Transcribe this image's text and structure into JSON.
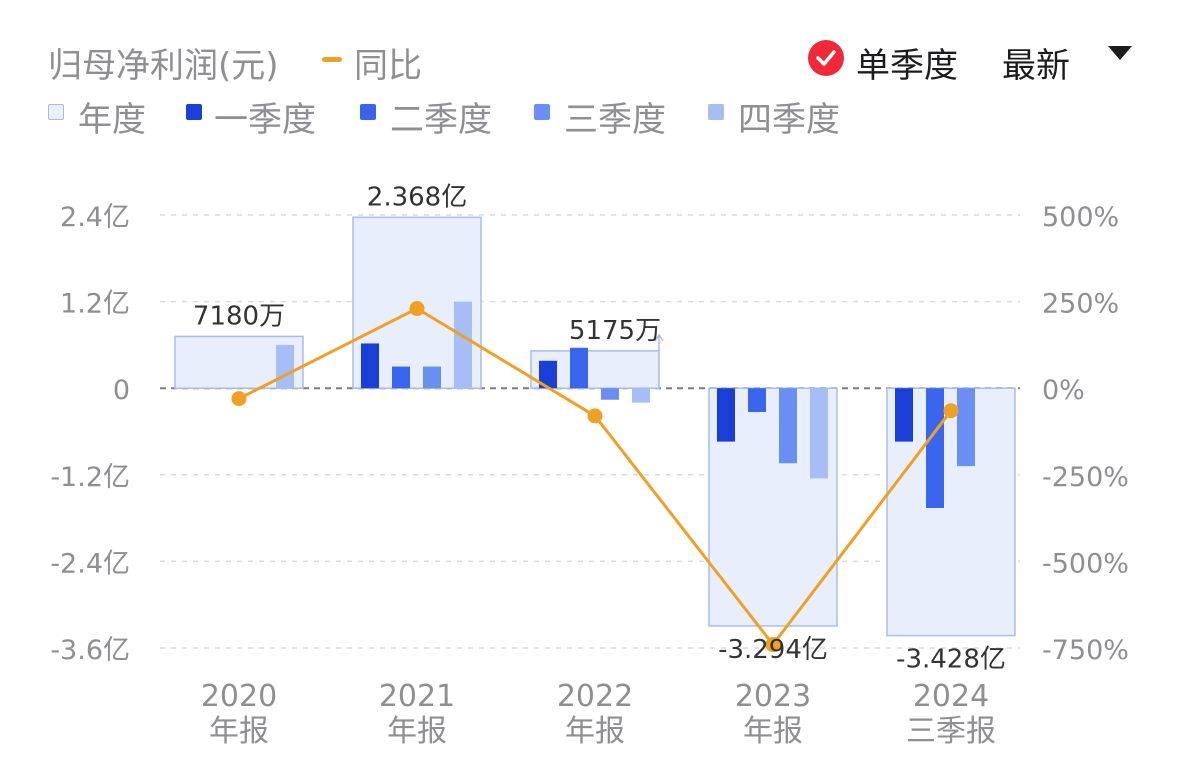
{
  "header": {
    "title": "归母净利润(元)",
    "yoy_label": "同比",
    "mode_label": "单季度",
    "sort_label": "最新"
  },
  "legend": [
    {
      "label": "年度",
      "color": "#e8eefc",
      "border": "#a9bde6"
    },
    {
      "label": "一季度",
      "color": "#1a3fd6"
    },
    {
      "label": "二季度",
      "color": "#3a66ee"
    },
    {
      "label": "三季度",
      "color": "#6a8ff2"
    },
    {
      "label": "四季度",
      "color": "#a6bdf5"
    }
  ],
  "colors": {
    "annual_fill": "#e8eefc",
    "annual_border": "#a9bde6",
    "q1": "#1a3fd6",
    "q2": "#3a66ee",
    "q3": "#6a8ff2",
    "q4": "#a6bdf5",
    "yoy_line": "#f0a024",
    "check_badge": "#f0283a",
    "grid": "#d9d9de",
    "axis_text": "#8e8e93",
    "label_text": "#333333"
  },
  "chart_data": {
    "type": "bar",
    "categories": [
      {
        "line1": "2020",
        "line2": "年报"
      },
      {
        "line1": "2021",
        "line2": "年报"
      },
      {
        "line1": "2022",
        "line2": "年报"
      },
      {
        "line1": "2023",
        "line2": "年报"
      },
      {
        "line1": "2024",
        "line2": "三季报"
      }
    ],
    "annual": [
      0.718,
      2.368,
      0.5175,
      -3.294,
      -3.428
    ],
    "annual_labels": [
      "7180万",
      "2.368亿",
      "5175万",
      "-3.294亿",
      "-3.428亿"
    ],
    "quarters": [
      [
        null,
        null,
        null,
        0.6
      ],
      [
        0.62,
        0.3,
        0.3,
        1.2
      ],
      [
        0.38,
        0.56,
        -0.16,
        -0.2
      ],
      [
        -0.74,
        -0.33,
        -1.04,
        -1.25
      ],
      [
        -0.74,
        -1.66,
        -1.08,
        null
      ]
    ],
    "yoy": [
      -30,
      230,
      -80,
      -740,
      -65
    ],
    "y_left": {
      "min": -3.6,
      "max": 2.4,
      "ticks": [
        2.4,
        1.2,
        0,
        -1.2,
        -2.4,
        -3.6
      ],
      "tick_labels": [
        "2.4亿",
        "1.2亿",
        "0",
        "-1.2亿",
        "-2.4亿",
        "-3.6亿"
      ]
    },
    "y_right": {
      "min": -750,
      "max": 500,
      "ticks": [
        500,
        250,
        0,
        -250,
        -500,
        -750
      ],
      "tick_labels": [
        "500%",
        "250%",
        "0%",
        "-250%",
        "-500%",
        "-750%"
      ]
    },
    "grid": true
  }
}
